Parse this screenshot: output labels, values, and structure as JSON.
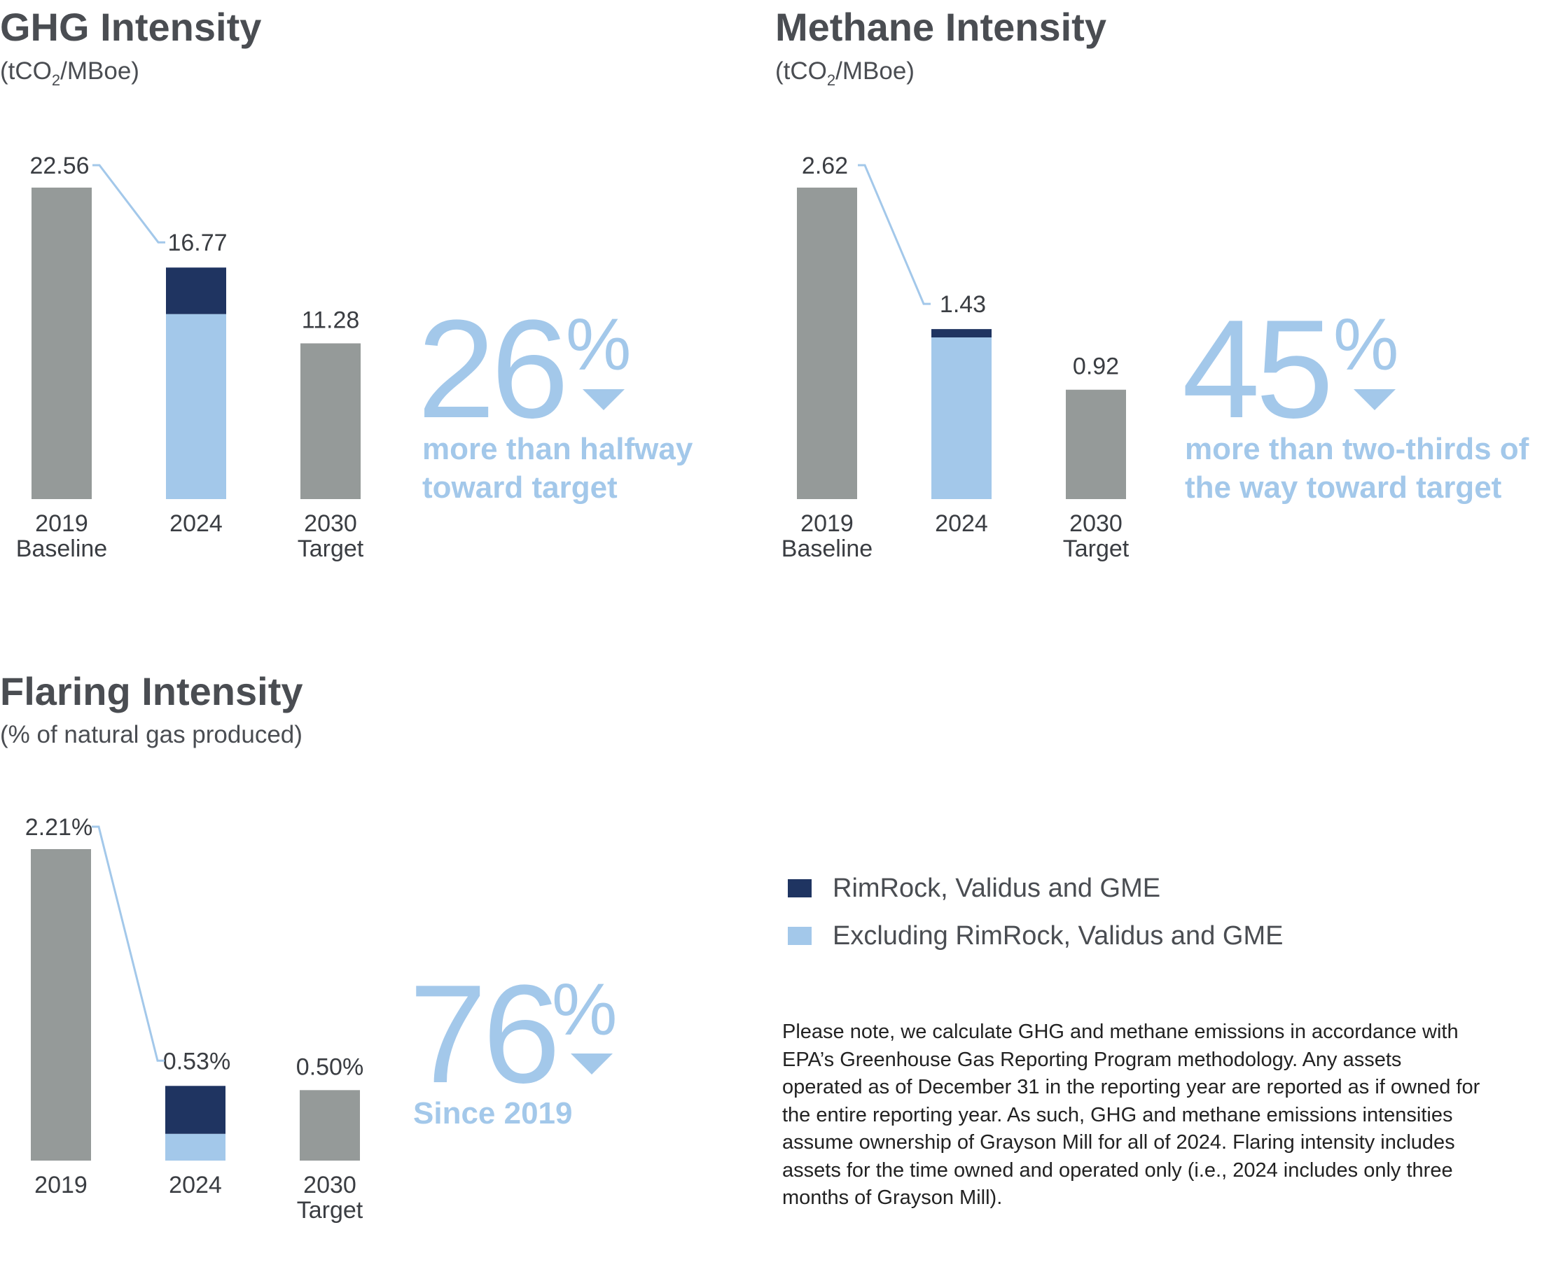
{
  "panels": {
    "ghg": {
      "title": "GHG Intensity",
      "unit_prefix": "(tCO",
      "unit_sub": "2",
      "unit_suffix": "/MBoe)",
      "big_number": "26",
      "percent_sign": "%",
      "caption_line1": "more than halfway",
      "caption_line2": "toward target"
    },
    "methane": {
      "title": "Methane Intensity",
      "unit_prefix": "(tCO",
      "unit_sub": "2",
      "unit_suffix": "/MBoe)",
      "big_number": "45",
      "percent_sign": "%",
      "caption_line1": "more than two-thirds of",
      "caption_line2": "the way toward target"
    },
    "flaring": {
      "title": "Flaring Intensity",
      "unit": "(% of natural gas produced)",
      "big_number": "76",
      "percent_sign": "%",
      "caption_line1": "Since 2019"
    }
  },
  "legend": [
    {
      "label": "RimRock, Validus and GME",
      "color": "#1f3461"
    },
    {
      "label": "Excluding RimRock, Validus and GME",
      "color": "#a3c8ea"
    }
  ],
  "footnote": "Please note, we calculate GHG and methane emissions in accordance with EPA’s Greenhouse Gas Reporting Program methodology. Any assets operated as of December 31 in the reporting year are reported as if owned for the entire reporting year. As such, GHG and methane emissions intensities assume ownership of Grayson Mill for all of 2024. Flaring intensity includes assets for the time owned and operated only (i.e., 2024 includes only three months of Grayson Mill).",
  "colors": {
    "baseline_bar": "#959a99",
    "rimrock": "#1f3461",
    "excluding": "#a3c8ea",
    "connector": "#a3c8ea"
  },
  "chart_data": [
    {
      "type": "bar",
      "title": "GHG Intensity",
      "ylabel": "(tCO2/MBoe)",
      "categories": [
        [
          "2019",
          "Baseline"
        ],
        [
          "2024"
        ],
        [
          "2030",
          "Target"
        ]
      ],
      "series": [
        {
          "name": "Excluding RimRock, Validus and GME",
          "values": [
            22.56,
            13.4,
            11.28
          ]
        },
        {
          "name": "RimRock, Validus and GME",
          "values": [
            0,
            3.37,
            0
          ]
        }
      ],
      "value_labels": [
        "22.56",
        "16.77",
        "11.28"
      ],
      "ylim": [
        0,
        22.56
      ]
    },
    {
      "type": "bar",
      "title": "Methane Intensity",
      "ylabel": "(tCO2/MBoe)",
      "categories": [
        [
          "2019",
          "Baseline"
        ],
        [
          "2024"
        ],
        [
          "2030",
          "Target"
        ]
      ],
      "series": [
        {
          "name": "Excluding RimRock, Validus and GME",
          "values": [
            2.62,
            1.36,
            0.92
          ]
        },
        {
          "name": "RimRock, Validus and GME",
          "values": [
            0,
            0.07,
            0
          ]
        }
      ],
      "value_labels": [
        "2.62",
        "1.43",
        "0.92"
      ],
      "ylim": [
        0,
        2.62
      ]
    },
    {
      "type": "bar",
      "title": "Flaring Intensity",
      "ylabel": "(% of natural gas produced)",
      "categories": [
        [
          "2019"
        ],
        [
          "2024"
        ],
        [
          "2030",
          "Target"
        ]
      ],
      "series": [
        {
          "name": "Excluding RimRock, Validus and GME",
          "values": [
            2.21,
            0.19,
            0.5
          ]
        },
        {
          "name": "RimRock, Validus and GME",
          "values": [
            0,
            0.34,
            0
          ]
        }
      ],
      "value_labels": [
        "2.21%",
        "0.53%",
        "0.50%"
      ],
      "ylim": [
        0,
        2.21
      ]
    }
  ]
}
